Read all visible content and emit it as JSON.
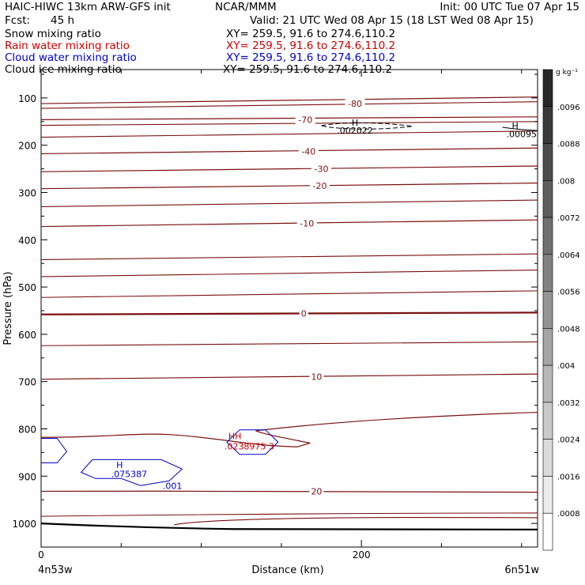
{
  "header": {
    "title": "HAIC-HIWC 13km ARW-GFS init",
    "org": "NCAR/MMM",
    "init": "Init: 00 UTC Tue 07 Apr 15",
    "fcst_label": "Fcst:",
    "fcst_value": "45 h",
    "valid": "Valid: 21 UTC Wed 08 Apr 15 (18 LST Wed 08 Apr 15)"
  },
  "fields": [
    {
      "name": "Snow mixing ratio",
      "xy": "XY= 259.5, 91.6 to 274.6,110.2",
      "color": "#000000"
    },
    {
      "name": "Rain water mixing ratio",
      "xy": "XY= 259.5, 91.6 to 274.6,110.2",
      "color": "#d00000"
    },
    {
      "name": "Cloud water mixing ratio",
      "xy": "XY= 259.5, 91.6 to 274.6,110.2",
      "color": "#0000c8"
    },
    {
      "name": "Cloud ice mixing ratio",
      "xy": "XY= 259.5, 91.6 to 274.6,110.2",
      "color": "#000000"
    }
  ],
  "chart_data": {
    "type": "contour",
    "xlabel": "Distance (km)",
    "ylabel": "Pressure (hPa)",
    "x_ticks": [
      0,
      200
    ],
    "x_minor_step": 50,
    "xlim": [
      0,
      310
    ],
    "y_ticks": [
      100,
      200,
      300,
      400,
      500,
      600,
      700,
      800,
      900,
      1000
    ],
    "ylim": [
      40,
      1050
    ],
    "x_endpoints": {
      "left": "4n53w",
      "right": "6n51w"
    },
    "temperature_contours": [
      {
        "label": "-80",
        "p": [
          112,
          105,
          98
        ]
      },
      {
        "label": "-70",
        "p": [
          146,
          144,
          140
        ]
      },
      {
        "label": "-40",
        "p": [
          218,
          212,
          206
        ]
      },
      {
        "label": "-30",
        "p": [
          256,
          250,
          244
        ]
      },
      {
        "label": "-20",
        "p": [
          292,
          286,
          280
        ]
      },
      {
        "label": "-10",
        "p": [
          372,
          365,
          358
        ]
      },
      {
        "label": "0",
        "p": [
          558,
          556,
          554
        ]
      },
      {
        "label": "10",
        "p": [
          695,
          690,
          684
        ]
      },
      {
        "label": "20",
        "p": [
          932,
          932,
          934
        ]
      }
    ],
    "mixing_ratio_labels": [
      {
        "field": "Cloud ice mixing ratio",
        "text": "H",
        "x": 196,
        "p": 152
      },
      {
        "field": "Cloud ice mixing ratio",
        "text": ".002022",
        "x": 196,
        "p": 169
      },
      {
        "field": "Cloud ice mixing ratio",
        "text": "H",
        "x": 296,
        "p": 159
      },
      {
        "field": "Cloud ice mixing ratio",
        "text": ".00095",
        "x": 300,
        "p": 176
      },
      {
        "field": "Cloud water mixing ratio",
        "text": "H",
        "x": 49,
        "p": 876
      },
      {
        "field": "Cloud water mixing ratio",
        "text": ".075387",
        "x": 55,
        "p": 895
      },
      {
        "field": "Cloud water mixing ratio",
        "text": ".001",
        "x": 82,
        "p": 920
      },
      {
        "field": "Rain water mixing ratio",
        "text": "HH",
        "x": 121,
        "p": 815
      },
      {
        "field": "Rain water mixing ratio",
        "text": ".0238975 3",
        "x": 130,
        "p": 837
      }
    ],
    "colorbar": {
      "unit": "g kg⁻¹",
      "labels": [
        ".0096",
        ".0088",
        ".008",
        ".0072",
        ".0064",
        ".0056",
        ".0048",
        ".004",
        ".0032",
        ".0024",
        ".0016",
        ".0008"
      ],
      "levels": 13
    }
  }
}
